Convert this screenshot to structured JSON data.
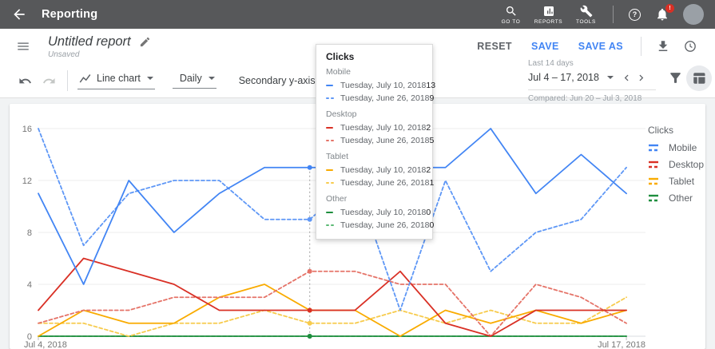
{
  "app_bar": {
    "title": "Reporting",
    "nav": [
      {
        "label": "GO TO"
      },
      {
        "label": "REPORTS"
      },
      {
        "label": "TOOLS"
      }
    ],
    "help_glyph": "?",
    "notification_badge": "!"
  },
  "report_bar": {
    "title": "Untitled report",
    "status": "Unsaved",
    "actions": [
      {
        "label": "RESET"
      },
      {
        "label": "SAVE"
      },
      {
        "label": "SAVE AS"
      }
    ]
  },
  "toolbar": {
    "chart_type": "Line chart",
    "granularity": "Daily",
    "secondary_label": "Secondary y-axis",
    "secondary_on": true
  },
  "date_range": {
    "preset": "Last 14 days",
    "range": "Jul 4 – 17, 2018",
    "compared": "Compared: Jun 20 – Jul 3, 2018"
  },
  "tooltip": {
    "title": "Clicks",
    "sections": [
      {
        "name": "Mobile",
        "color": "#4285f4",
        "dashed_color": "#5e97f6",
        "rows": [
          {
            "date": "Tuesday, July 10, 2018",
            "value": "13",
            "style": "solid"
          },
          {
            "date": "Tuesday, June 26, 2018",
            "value": "9",
            "style": "dashed"
          }
        ]
      },
      {
        "name": "Desktop",
        "color": "#d93025",
        "dashed_color": "#e57368",
        "rows": [
          {
            "date": "Tuesday, July 10, 2018",
            "value": "2",
            "style": "solid"
          },
          {
            "date": "Tuesday, June 26, 2018",
            "value": "5",
            "style": "dashed"
          }
        ]
      },
      {
        "name": "Tablet",
        "color": "#f9ab00",
        "dashed_color": "#f7cb4d",
        "rows": [
          {
            "date": "Tuesday, July 10, 2018",
            "value": "2",
            "style": "solid"
          },
          {
            "date": "Tuesday, June 26, 2018",
            "value": "1",
            "style": "dashed"
          }
        ]
      },
      {
        "name": "Other",
        "color": "#1e8e3e",
        "dashed_color": "#5bb974",
        "rows": [
          {
            "date": "Tuesday, July 10, 2018",
            "value": "0",
            "style": "solid"
          },
          {
            "date": "Tuesday, June 26, 2018",
            "value": "0",
            "style": "dashed"
          }
        ]
      }
    ]
  },
  "legend": {
    "title": "Clicks",
    "items": [
      {
        "label": "Mobile",
        "color": "#4285f4"
      },
      {
        "label": "Desktop",
        "color": "#d93025"
      },
      {
        "label": "Tablet",
        "color": "#f9ab00"
      },
      {
        "label": "Other",
        "color": "#1e8e3e"
      }
    ]
  },
  "chart_data": {
    "type": "line",
    "title": "Clicks",
    "ylabel": "Clicks",
    "ylim": [
      0,
      16
    ],
    "yticks": [
      0,
      4,
      8,
      12,
      16
    ],
    "grid": true,
    "legend_position": "right",
    "x_axis": {
      "start_label": "Jul 4, 2018",
      "end_label": "Jul 17, 2018",
      "points": 14
    },
    "hover": {
      "index": 6,
      "current_date": "Tuesday, July 10, 2018",
      "compared_date": "Tuesday, June 26, 2018"
    },
    "series": [
      {
        "name": "Other",
        "period": "Jun 20 – Jul 3, 2018",
        "style": "dashed",
        "color": "#5bb974",
        "values": [
          0,
          0,
          0,
          0,
          0,
          0,
          0,
          0,
          0,
          0,
          0,
          0,
          0,
          0
        ]
      },
      {
        "name": "Other",
        "period": "Jul 4 – 17, 2018",
        "style": "solid",
        "color": "#1e8e3e",
        "values": [
          0,
          0,
          0,
          0,
          0,
          0,
          0,
          0,
          0,
          0,
          0,
          0,
          0,
          0
        ]
      },
      {
        "name": "Tablet",
        "period": "Jun 20 – Jul 3, 2018",
        "style": "dashed",
        "color": "#f7cb4d",
        "values": [
          1,
          1,
          0,
          1,
          1,
          2,
          1,
          1,
          2,
          1,
          2,
          1,
          1,
          3
        ]
      },
      {
        "name": "Tablet",
        "period": "Jul 4 – 17, 2018",
        "style": "solid",
        "color": "#f9ab00",
        "values": [
          0,
          2,
          1,
          1,
          3,
          4,
          2,
          2,
          0,
          2,
          1,
          2,
          1,
          2
        ]
      },
      {
        "name": "Desktop",
        "period": "Jun 20 – Jul 3, 2018",
        "style": "dashed",
        "color": "#e57368",
        "values": [
          1,
          2,
          2,
          3,
          3,
          3,
          5,
          5,
          4,
          4,
          0,
          4,
          3,
          1
        ]
      },
      {
        "name": "Desktop",
        "period": "Jul 4 – 17, 2018",
        "style": "solid",
        "color": "#d93025",
        "values": [
          2,
          6,
          5,
          4,
          2,
          2,
          2,
          2,
          5,
          1,
          0,
          2,
          2,
          2
        ]
      },
      {
        "name": "Mobile",
        "period": "Jun 20 – Jul 3, 2018",
        "style": "dashed",
        "color": "#5e97f6",
        "values": [
          16,
          7,
          11,
          12,
          12,
          9,
          9,
          12,
          2,
          12,
          5,
          8,
          9,
          13
        ]
      },
      {
        "name": "Mobile",
        "period": "Jul 4 – 17, 2018",
        "style": "solid",
        "color": "#4285f4",
        "values": [
          11,
          4,
          12,
          8,
          11,
          13,
          13,
          13,
          13,
          13,
          16,
          11,
          14,
          11
        ]
      }
    ]
  }
}
